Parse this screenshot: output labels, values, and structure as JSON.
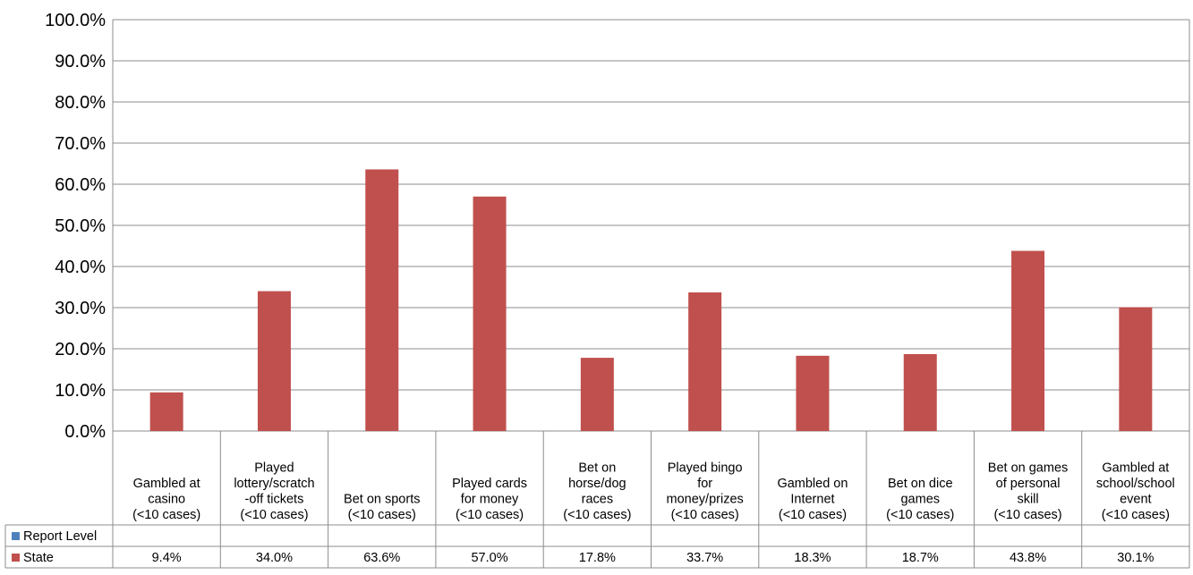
{
  "chart_data": {
    "type": "bar",
    "title": "",
    "xlabel": "",
    "ylabel": "",
    "ylim": [
      0,
      100
    ],
    "yticks": [
      "0.0%",
      "10.0%",
      "20.0%",
      "30.0%",
      "40.0%",
      "50.0%",
      "60.0%",
      "70.0%",
      "80.0%",
      "90.0%",
      "100.0%"
    ],
    "categories": [
      [
        "Gambled at",
        "casino",
        "(<10 cases)"
      ],
      [
        "Played",
        "lottery/scratch",
        "-off tickets",
        "(<10 cases)"
      ],
      [
        "Bet on sports",
        "(<10 cases)"
      ],
      [
        "Played cards",
        "for money",
        "(<10 cases)"
      ],
      [
        "Bet on",
        "horse/dog",
        "races",
        "(<10 cases)"
      ],
      [
        "Played bingo",
        "for",
        "money/prizes",
        "(<10 cases)"
      ],
      [
        "Gambled on",
        "Internet",
        "(<10 cases)"
      ],
      [
        "Bet on dice",
        "games",
        "(<10 cases)"
      ],
      [
        "Bet on games",
        "of personal",
        "skill",
        "(<10 cases)"
      ],
      [
        "Gambled at",
        "school/school",
        "event",
        "(<10 cases)"
      ]
    ],
    "series": [
      {
        "name": "Report Level",
        "color": "#4f81bd",
        "values": [
          null,
          null,
          null,
          null,
          null,
          null,
          null,
          null,
          null,
          null
        ],
        "labels": [
          "",
          "",
          "",
          "",
          "",
          "",
          "",
          "",
          "",
          ""
        ]
      },
      {
        "name": "State",
        "color": "#c0504d",
        "values": [
          9.4,
          34.0,
          63.6,
          57.0,
          17.8,
          33.7,
          18.3,
          18.7,
          43.8,
          30.1
        ],
        "labels": [
          "9.4%",
          "34.0%",
          "63.6%",
          "57.0%",
          "17.8%",
          "33.7%",
          "18.3%",
          "18.7%",
          "43.8%",
          "30.1%"
        ]
      }
    ],
    "grid": true,
    "legend": "data-table"
  }
}
